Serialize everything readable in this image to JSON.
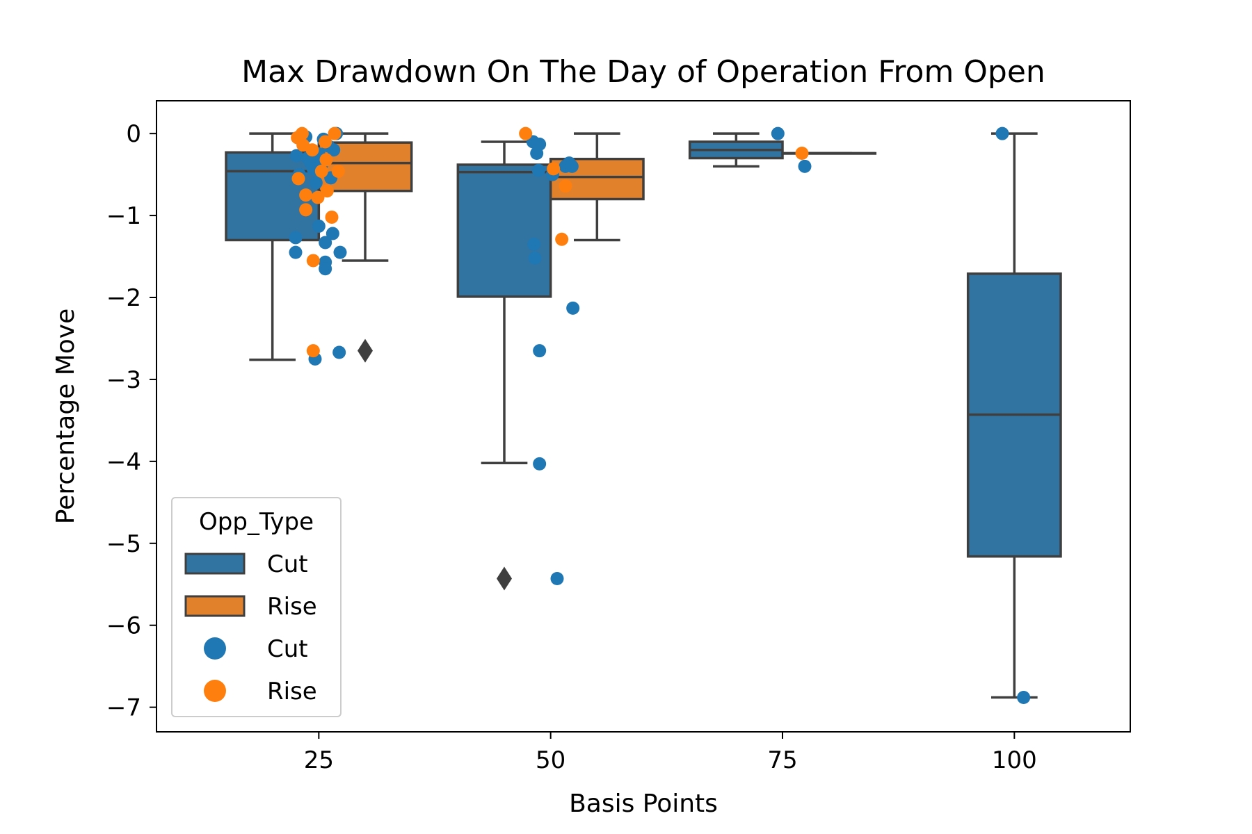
{
  "chart_data": {
    "type": "box-strip",
    "title": "Max Drawdown On The Day of Operation From Open",
    "xlabel": "Basis Points",
    "ylabel": "Percentage Move",
    "categories": [
      "25",
      "50",
      "75",
      "100"
    ],
    "yticks": [
      0,
      -1,
      -2,
      -3,
      -4,
      -5,
      -6,
      -7
    ],
    "ytick_labels": [
      "0",
      "−1",
      "−2",
      "−3",
      "−4",
      "−5",
      "−6",
      "−7"
    ],
    "ylim": [
      -7.3,
      0.4
    ],
    "grid": false,
    "legend": {
      "title": "Opp_Type",
      "placement": "lower-left",
      "entries": [
        {
          "kind": "box",
          "label": "Cut",
          "color": "#3274a1"
        },
        {
          "kind": "box",
          "label": "Rise",
          "color": "#e1812c"
        },
        {
          "kind": "point",
          "label": "Cut",
          "color": "#1f77b4"
        },
        {
          "kind": "point",
          "label": "Rise",
          "color": "#ff7f0e"
        }
      ]
    },
    "colors": {
      "cut_box": "#3274a1",
      "rise_box": "#e1812c",
      "cut_point": "#1f77b4",
      "rise_point": "#ff7f0e",
      "line": "#3f3f3f"
    },
    "boxes": [
      {
        "category": "25",
        "group": "Cut",
        "whisker_low": -2.76,
        "q1": -1.3,
        "median": -0.46,
        "q3": -0.23,
        "whisker_high": 0.0,
        "outliers": []
      },
      {
        "category": "25",
        "group": "Rise",
        "whisker_low": -1.55,
        "q1": -0.7,
        "median": -0.36,
        "q3": -0.11,
        "whisker_high": 0.0,
        "outliers": [
          -2.65
        ]
      },
      {
        "category": "50",
        "group": "Cut",
        "whisker_low": -4.02,
        "q1": -1.99,
        "median": -0.47,
        "q3": -0.38,
        "whisker_high": -0.1,
        "outliers": [
          -5.43
        ]
      },
      {
        "category": "50",
        "group": "Rise",
        "whisker_low": -1.3,
        "q1": -0.8,
        "median": -0.53,
        "q3": -0.31,
        "whisker_high": 0.0,
        "outliers": []
      },
      {
        "category": "75",
        "group": "Cut",
        "whisker_low": -0.4,
        "q1": -0.3,
        "median": -0.2,
        "q3": -0.1,
        "whisker_high": 0.0,
        "outliers": []
      },
      {
        "category": "75",
        "group": "Rise",
        "whisker_low": -0.24,
        "q1": -0.24,
        "median": -0.24,
        "q3": -0.24,
        "whisker_high": -0.24,
        "outliers": []
      },
      {
        "category": "100",
        "group": "Cut",
        "whisker_low": -6.88,
        "q1": -5.16,
        "median": -3.43,
        "q3": -1.71,
        "whisker_high": 0.0,
        "outliers": []
      }
    ],
    "points": [
      {
        "group": "Cut",
        "x": 22.6,
        "y": -0.27
      },
      {
        "group": "Cut",
        "x": 22.9,
        "y": -0.5
      },
      {
        "group": "Cut",
        "x": 23.2,
        "y": -0.06
      },
      {
        "group": "Cut",
        "x": 23.6,
        "y": -0.04
      },
      {
        "group": "Cut",
        "x": 23.8,
        "y": -0.3
      },
      {
        "group": "Cut",
        "x": 24.1,
        "y": -0.35
      },
      {
        "group": "Cut",
        "x": 24.4,
        "y": -0.43
      },
      {
        "group": "Cut",
        "x": 24.7,
        "y": -0.6
      },
      {
        "group": "Cut",
        "x": 25.0,
        "y": -0.25
      },
      {
        "group": "Cut",
        "x": 25.3,
        "y": -0.38
      },
      {
        "group": "Cut",
        "x": 25.5,
        "y": -0.07
      },
      {
        "group": "Cut",
        "x": 26.0,
        "y": -0.15
      },
      {
        "group": "Cut",
        "x": 26.6,
        "y": -0.2
      },
      {
        "group": "Cut",
        "x": 26.9,
        "y": 0.0
      },
      {
        "group": "Cut",
        "x": 26.3,
        "y": -0.54
      },
      {
        "group": "Cut",
        "x": 22.5,
        "y": -1.27
      },
      {
        "group": "Cut",
        "x": 22.5,
        "y": -1.45
      },
      {
        "group": "Cut",
        "x": 25.0,
        "y": -1.13
      },
      {
        "group": "Cut",
        "x": 25.7,
        "y": -1.33
      },
      {
        "group": "Cut",
        "x": 25.7,
        "y": -1.57
      },
      {
        "group": "Cut",
        "x": 25.7,
        "y": -1.65
      },
      {
        "group": "Cut",
        "x": 26.5,
        "y": -1.22
      },
      {
        "group": "Cut",
        "x": 27.3,
        "y": -1.45
      },
      {
        "group": "Cut",
        "x": 24.6,
        "y": -2.75
      },
      {
        "group": "Cut",
        "x": 27.2,
        "y": -2.67
      },
      {
        "group": "Rise",
        "x": 22.7,
        "y": -0.05
      },
      {
        "group": "Rise",
        "x": 22.8,
        "y": -0.55
      },
      {
        "group": "Rise",
        "x": 23.2,
        "y": 0.0
      },
      {
        "group": "Rise",
        "x": 23.3,
        "y": -0.14
      },
      {
        "group": "Rise",
        "x": 23.6,
        "y": -0.75
      },
      {
        "group": "Rise",
        "x": 23.6,
        "y": -0.93
      },
      {
        "group": "Rise",
        "x": 24.3,
        "y": -0.2
      },
      {
        "group": "Rise",
        "x": 24.9,
        "y": -0.78
      },
      {
        "group": "Rise",
        "x": 25.3,
        "y": -0.46
      },
      {
        "group": "Rise",
        "x": 25.7,
        "y": -0.1
      },
      {
        "group": "Rise",
        "x": 25.8,
        "y": -0.32
      },
      {
        "group": "Rise",
        "x": 25.9,
        "y": -0.7
      },
      {
        "group": "Rise",
        "x": 26.4,
        "y": -1.02
      },
      {
        "group": "Rise",
        "x": 26.7,
        "y": 0.0
      },
      {
        "group": "Rise",
        "x": 27.1,
        "y": -0.46
      },
      {
        "group": "Rise",
        "x": 24.4,
        "y": -1.55
      },
      {
        "group": "Rise",
        "x": 24.4,
        "y": -2.65
      },
      {
        "group": "Cut",
        "x": 48.1,
        "y": -0.1
      },
      {
        "group": "Cut",
        "x": 48.5,
        "y": -0.24
      },
      {
        "group": "Cut",
        "x": 48.8,
        "y": -0.13
      },
      {
        "group": "Cut",
        "x": 48.7,
        "y": -0.45
      },
      {
        "group": "Cut",
        "x": 50.2,
        "y": -0.5
      },
      {
        "group": "Cut",
        "x": 51.6,
        "y": -0.4
      },
      {
        "group": "Cut",
        "x": 52.0,
        "y": -0.36
      },
      {
        "group": "Cut",
        "x": 52.3,
        "y": -0.4
      },
      {
        "group": "Cut",
        "x": 48.2,
        "y": -1.35
      },
      {
        "group": "Cut",
        "x": 48.3,
        "y": -1.52
      },
      {
        "group": "Cut",
        "x": 52.4,
        "y": -2.13
      },
      {
        "group": "Cut",
        "x": 48.8,
        "y": -2.65
      },
      {
        "group": "Cut",
        "x": 48.8,
        "y": -4.03
      },
      {
        "group": "Cut",
        "x": 50.7,
        "y": -5.43
      },
      {
        "group": "Rise",
        "x": 47.3,
        "y": 0.0
      },
      {
        "group": "Rise",
        "x": 50.3,
        "y": -0.43
      },
      {
        "group": "Rise",
        "x": 51.6,
        "y": -0.64
      },
      {
        "group": "Rise",
        "x": 51.2,
        "y": -1.29
      },
      {
        "group": "Cut",
        "x": 74.5,
        "y": 0.0
      },
      {
        "group": "Cut",
        "x": 77.4,
        "y": -0.4
      },
      {
        "group": "Rise",
        "x": 77.1,
        "y": -0.24
      },
      {
        "group": "Cut",
        "x": 98.7,
        "y": 0.0
      },
      {
        "group": "Cut",
        "x": 101.0,
        "y": -6.88
      }
    ]
  }
}
